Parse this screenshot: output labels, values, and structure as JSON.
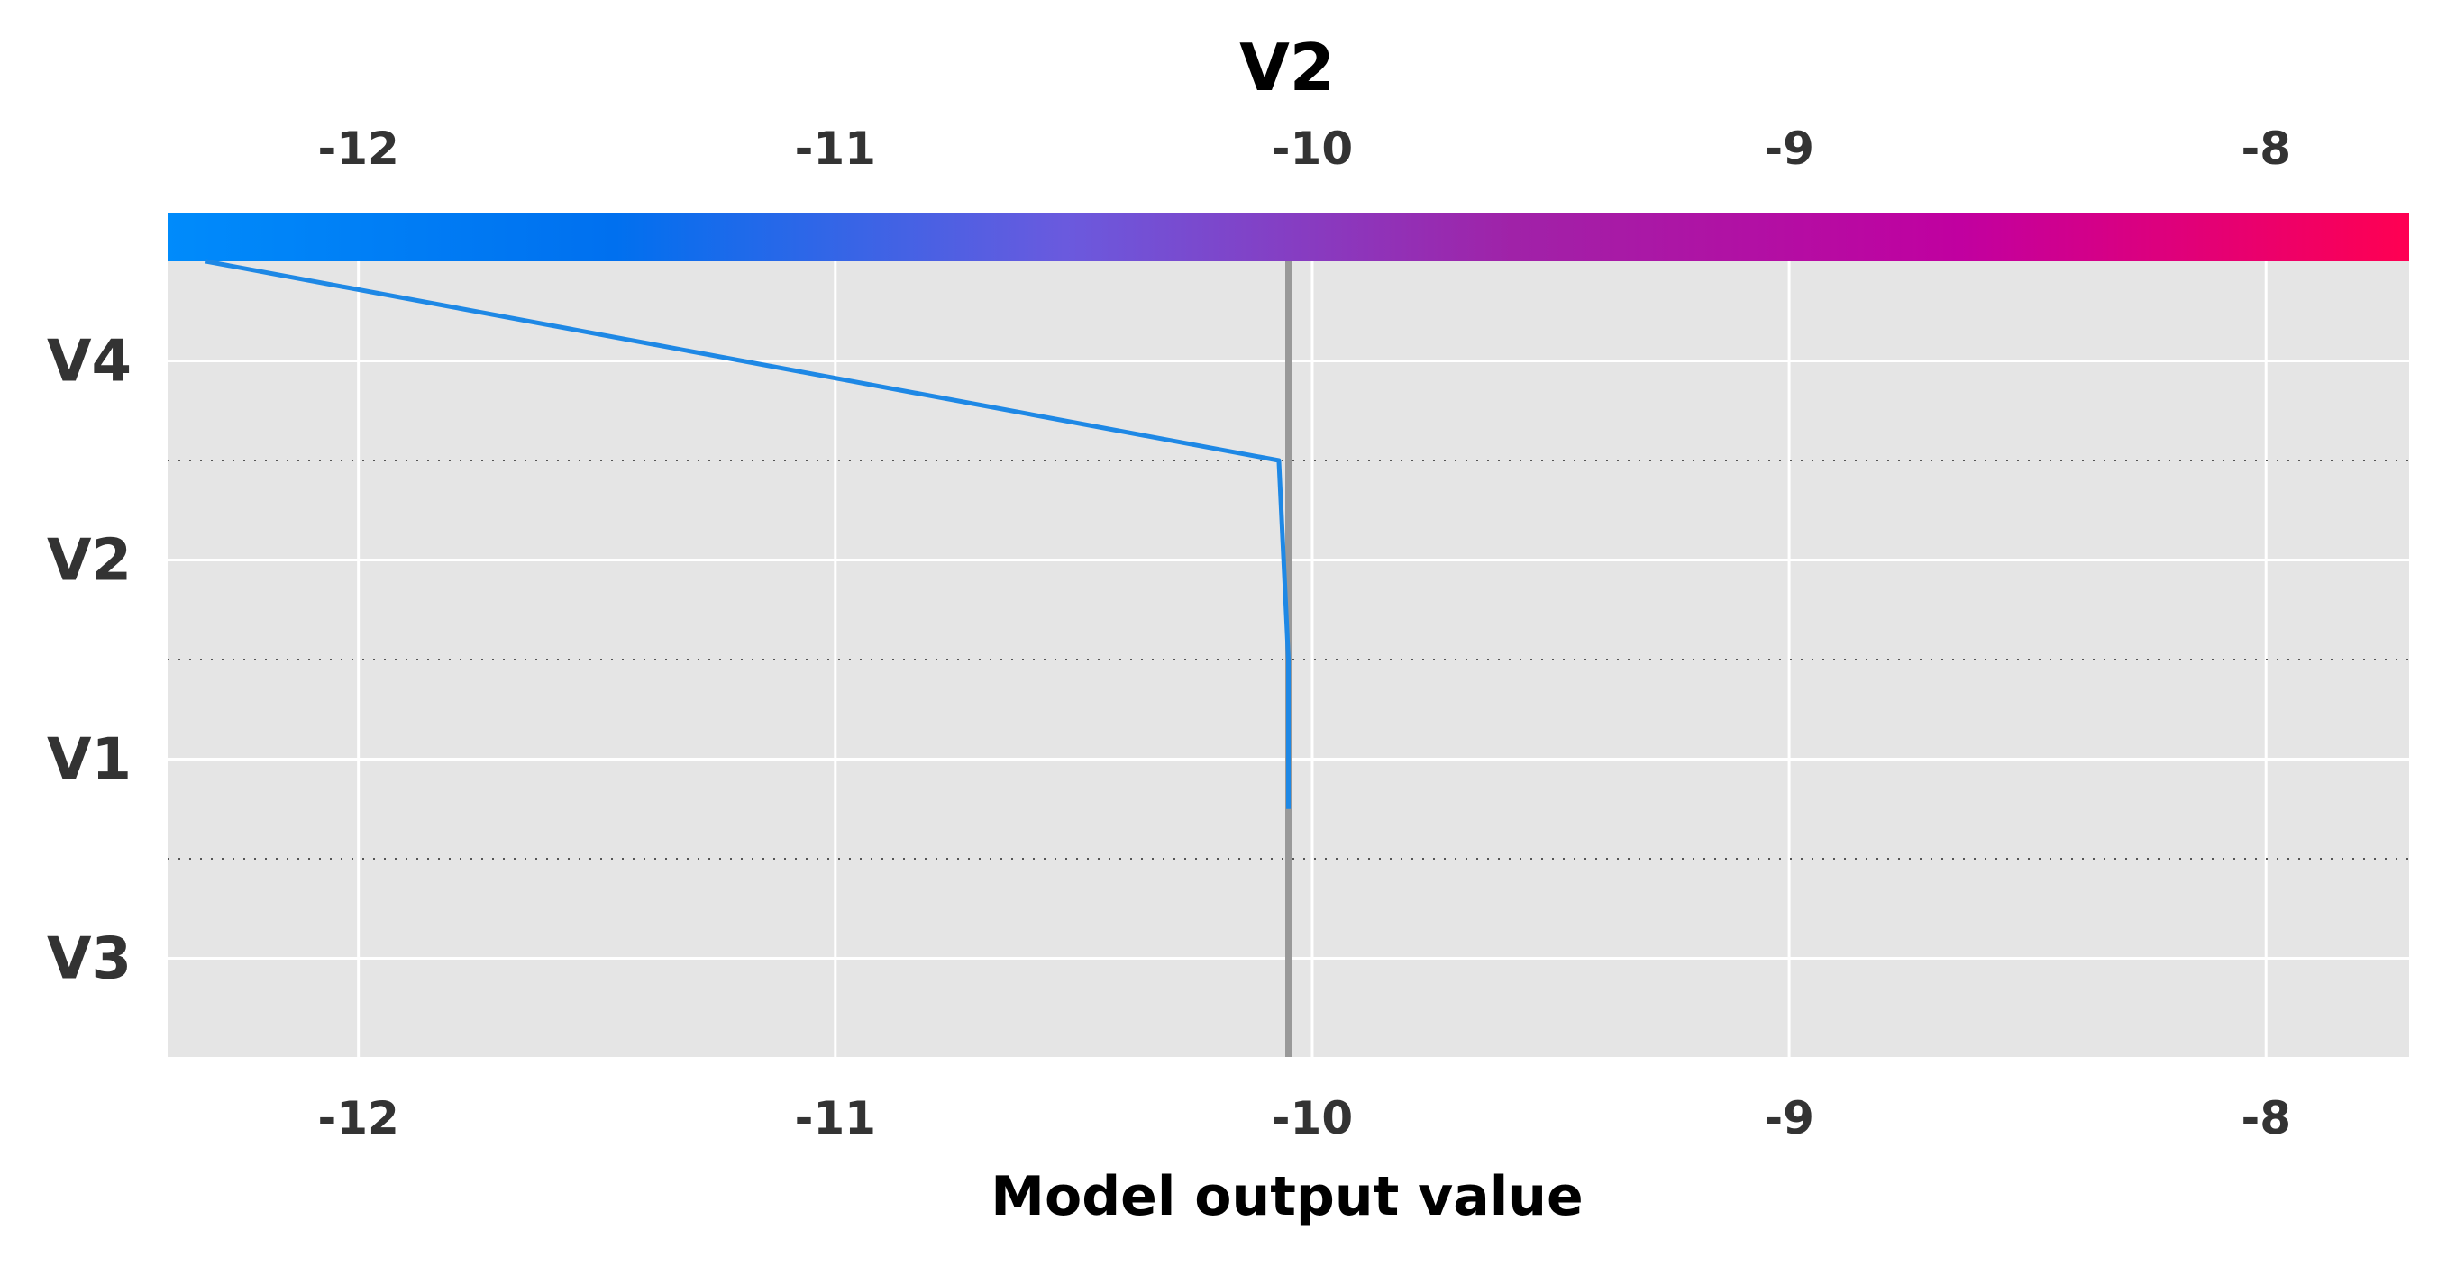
{
  "chart_data": {
    "type": "line",
    "title": "V2",
    "xlabel": "Model output value",
    "ylabel": "",
    "xlim": [
      -12.4,
      -7.7
    ],
    "x_ticks": [
      -12,
      -11,
      -10,
      -9,
      -8
    ],
    "x_tick_labels": [
      "-12",
      "-11",
      "-10",
      "-9",
      "-8"
    ],
    "categories": [
      "V4",
      "V2",
      "V1",
      "V3"
    ],
    "base_value": -10.05,
    "series": [
      {
        "x": [
          -12.32,
          -10.07,
          -10.05,
          -10.05
        ],
        "y": [
          "top",
          "V4/V2",
          "V1/V3",
          "bottom"
        ],
        "path_x": [
          -12.32,
          -10.07,
          -10.05,
          -10.05
        ],
        "path_level": [
          0,
          2,
          4,
          5.5
        ]
      }
    ],
    "colorbar": {
      "stops": [
        "#008bfb",
        "#0070ef",
        "#6a5ade",
        "#a022a8",
        "#c100a0",
        "#ff0052"
      ]
    },
    "grid": true,
    "background": "#e5e5e5",
    "line_color": "#1e88e5",
    "base_line_color": "#999999"
  }
}
